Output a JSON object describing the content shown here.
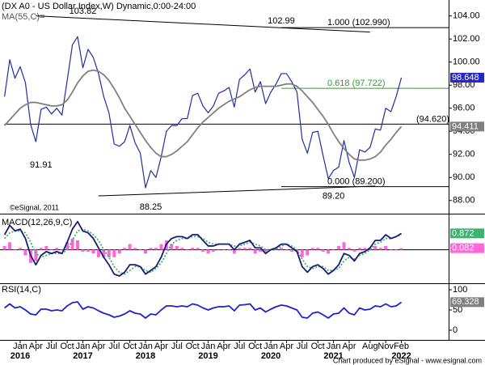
{
  "chart_data": [
    {
      "type": "line",
      "title": "(DX A0 - US Dollar Index,W) Dynamic,0:00-24:00",
      "legend_label": "MA(55,C)=",
      "credit": "©eSignal, 2011",
      "x": [
        "2015-10",
        "2015-11",
        "2015-12",
        "2016-01",
        "2016-02",
        "2016-03",
        "2016-04",
        "2016-05",
        "2016-06",
        "2016-07",
        "2016-08",
        "2016-09",
        "2016-10",
        "2016-11",
        "2016-12",
        "2017-01",
        "2017-02",
        "2017-03",
        "2017-04",
        "2017-05",
        "2017-06",
        "2017-07",
        "2017-08",
        "2017-09",
        "2017-10",
        "2017-11",
        "2017-12",
        "2018-01",
        "2018-02",
        "2018-03",
        "2018-04",
        "2018-05",
        "2018-06",
        "2018-07",
        "2018-08",
        "2018-09",
        "2018-10",
        "2018-11",
        "2018-12",
        "2019-01",
        "2019-02",
        "2019-03",
        "2019-04",
        "2019-05",
        "2019-06",
        "2019-07",
        "2019-08",
        "2019-09",
        "2019-10",
        "2019-11",
        "2019-12",
        "2020-01",
        "2020-02",
        "2020-03",
        "2020-04",
        "2020-05",
        "2020-06",
        "2020-07",
        "2020-08",
        "2020-09",
        "2020-10",
        "2020-11",
        "2020-12",
        "2021-01",
        "2021-02",
        "2021-03",
        "2021-04",
        "2021-05",
        "2021-06",
        "2021-07",
        "2021-08",
        "2021-09",
        "2021-10",
        "2021-11",
        "2021-12",
        "2022-01",
        "2022-02"
      ],
      "series": [
        {
          "name": "US Dollar Index",
          "color": "#1f2f9f",
          "tag_color": "#2525c8",
          "values": [
            97.0,
            100.2,
            98.6,
            99.6,
            98.2,
            94.6,
            93.1,
            95.9,
            96.1,
            95.5,
            96.0,
            95.4,
            98.4,
            101.5,
            102.2,
            99.5,
            101.1,
            100.4,
            99.0,
            97.0,
            95.6,
            92.9,
            92.7,
            93.1,
            94.5,
            93.0,
            92.1,
            89.1,
            90.6,
            90.0,
            91.8,
            94.0,
            94.5,
            94.5,
            95.1,
            95.1,
            97.1,
            97.3,
            96.2,
            95.6,
            96.2,
            97.3,
            97.5,
            97.8,
            96.1,
            98.5,
            98.9,
            99.4,
            97.4,
            98.3,
            96.4,
            97.4,
            98.1,
            99.0,
            99.0,
            98.3,
            97.4,
            93.3,
            92.1,
            93.9,
            94.0,
            91.9,
            89.9,
            90.6,
            90.9,
            93.2,
            91.3,
            90.0,
            92.4,
            92.2,
            92.6,
            94.2,
            94.1,
            96.0,
            95.7,
            97.0,
            98.648
          ]
        },
        {
          "name": "MA(55,C)",
          "color": "#808080",
          "tag_color": "#808080",
          "values": [
            94.5,
            95.0,
            95.5,
            96.0,
            96.3,
            96.5,
            96.5,
            96.4,
            96.3,
            96.2,
            96.2,
            96.3,
            96.7,
            97.4,
            98.2,
            98.8,
            99.2,
            99.3,
            99.2,
            98.9,
            98.4,
            97.7,
            96.9,
            96.0,
            95.3,
            94.6,
            93.9,
            93.2,
            92.6,
            92.1,
            91.8,
            91.8,
            92.0,
            92.3,
            92.7,
            93.1,
            93.7,
            94.3,
            94.8,
            95.2,
            95.6,
            96.0,
            96.3,
            96.6,
            96.8,
            97.0,
            97.3,
            97.6,
            97.8,
            97.9,
            97.9,
            97.9,
            97.9,
            98.0,
            98.1,
            98.1,
            97.9,
            97.5,
            97.0,
            96.5,
            95.9,
            95.3,
            94.6,
            93.8,
            93.1,
            92.5,
            92.0,
            91.6,
            91.5,
            91.5,
            91.6,
            91.8,
            92.2,
            92.8,
            93.3,
            93.9,
            94.411
          ]
        }
      ],
      "ylim": [
        87.0,
        105.1
      ],
      "yticks": [
        {
          "value": 104,
          "label": "104.00"
        },
        {
          "value": 102,
          "label": "102.00"
        },
        {
          "value": 100,
          "label": "100.00"
        },
        {
          "value": 98,
          "label": "98.00"
        },
        {
          "value": 96,
          "label": "96.00"
        },
        {
          "value": 94,
          "label": "94.00"
        },
        {
          "value": 92,
          "label": "92.00"
        },
        {
          "value": 90,
          "label": "90.00"
        },
        {
          "value": 88,
          "label": "88.00"
        }
      ],
      "annotations": [
        {
          "x": "2017-01",
          "value": 103.82,
          "label": "103.82",
          "side": "above"
        },
        {
          "x": "2016-05",
          "value": 91.91,
          "label": "91.91",
          "side": "below"
        },
        {
          "x": "2018-02",
          "value": 88.25,
          "label": "88.25",
          "side": "below"
        },
        {
          "x": "2020-03",
          "value": 102.99,
          "label": "102.99",
          "side": "above"
        },
        {
          "x": "2021-01",
          "value": 89.2,
          "label": "89.20",
          "side": "below"
        }
      ],
      "levels": [
        {
          "from": "2020-03",
          "value": 102.99,
          "label": "1.000 (102.990)",
          "color": "#000000"
        },
        {
          "from": "2020-03",
          "value": 97.722,
          "label": "0.618 (97.722)",
          "color": "#2e9e2e"
        },
        {
          "from": "2015-10",
          "value": 94.62,
          "label": "(94.620)",
          "color": "#000000"
        },
        {
          "from": "2020-03",
          "value": 89.2,
          "label": "0.000 (89.200)",
          "color": "#000000"
        }
      ],
      "trendlines": [
        {
          "x": [
            "2016-04",
            "2021-08"
          ],
          "values": [
            104.0,
            102.6
          ]
        },
        {
          "x": [
            "2017-04",
            "2021-09"
          ],
          "values": [
            88.4,
            89.25
          ]
        }
      ]
    },
    {
      "type": "macd",
      "legend_label": "MACD(12,26,9,C)",
      "series": [
        {
          "name": "Histogram",
          "kind": "bar",
          "color": "#ff66d9",
          "tag_color": "#ff66d9",
          "values": [
            0.2,
            0.4,
            0.0,
            0.1,
            -0.3,
            -0.7,
            -0.6,
            0.1,
            0.2,
            0.0,
            0.1,
            0.0,
            0.4,
            0.6,
            0.5,
            -0.1,
            -0.1,
            -0.2,
            -0.4,
            -0.4,
            -0.4,
            -0.4,
            -0.2,
            0.1,
            0.3,
            0.1,
            0.0,
            -0.2,
            0.1,
            0.1,
            0.3,
            0.5,
            0.3,
            0.2,
            0.1,
            0.0,
            0.1,
            0.1,
            -0.1,
            -0.2,
            -0.1,
            0.0,
            0.0,
            0.0,
            -0.2,
            0.1,
            0.1,
            0.1,
            -0.2,
            -0.1,
            -0.2,
            0.0,
            0.1,
            0.1,
            0.0,
            -0.1,
            -0.1,
            -0.4,
            -0.3,
            0.1,
            0.1,
            -0.1,
            -0.2,
            0.0,
            0.2,
            0.4,
            0.1,
            -0.1,
            0.1,
            0.1,
            0.1,
            0.2,
            0.1,
            0.2,
            0.0,
            0.0,
            0.082
          ]
        },
        {
          "name": "Signal",
          "kind": "line",
          "dash": true,
          "color": "#3cb371",
          "values": [
            0.6,
            0.9,
            1.0,
            1.0,
            0.9,
            0.4,
            -0.2,
            -0.4,
            -0.3,
            -0.2,
            -0.2,
            -0.2,
            0.0,
            0.5,
            1.0,
            1.1,
            1.0,
            0.8,
            0.5,
            0.0,
            -0.4,
            -0.9,
            -1.2,
            -1.3,
            -1.1,
            -0.9,
            -0.9,
            -1.1,
            -1.2,
            -1.0,
            -0.7,
            -0.2,
            0.3,
            0.5,
            0.6,
            0.6,
            0.7,
            0.7,
            0.6,
            0.4,
            0.3,
            0.3,
            0.3,
            0.3,
            0.2,
            0.2,
            0.3,
            0.4,
            0.3,
            0.2,
            0.0,
            0.0,
            0.0,
            0.2,
            0.3,
            0.2,
            0.0,
            -0.5,
            -0.9,
            -1.0,
            -0.9,
            -0.9,
            -1.1,
            -1.1,
            -1.0,
            -0.6,
            -0.4,
            -0.5,
            -0.3,
            -0.2,
            0.0,
            0.3,
            0.4,
            0.6,
            0.6,
            0.7,
            0.79
          ]
        },
        {
          "name": "MACD",
          "kind": "line",
          "color": "#1a1a7a",
          "tag_color": "#3cb371",
          "values": [
            0.8,
            1.3,
            1.0,
            1.1,
            0.6,
            -0.3,
            -0.8,
            -0.3,
            -0.1,
            -0.2,
            -0.1,
            -0.2,
            0.4,
            1.1,
            1.5,
            1.0,
            0.9,
            0.6,
            0.1,
            -0.4,
            -0.8,
            -1.3,
            -1.4,
            -1.2,
            -0.8,
            -0.8,
            -0.9,
            -1.3,
            -1.1,
            -0.9,
            -0.4,
            0.3,
            0.6,
            0.7,
            0.7,
            0.6,
            0.8,
            0.8,
            0.5,
            0.2,
            0.2,
            0.3,
            0.3,
            0.3,
            0.0,
            0.3,
            0.4,
            0.5,
            0.1,
            0.1,
            -0.2,
            0.0,
            0.1,
            0.3,
            0.3,
            0.1,
            -0.1,
            -0.9,
            -1.2,
            -0.9,
            -0.8,
            -1.0,
            -1.3,
            -1.1,
            -0.8,
            -0.2,
            -0.3,
            -0.6,
            -0.2,
            -0.1,
            0.1,
            0.5,
            0.5,
            0.8,
            0.6,
            0.7,
            0.872
          ]
        }
      ],
      "ylim": [
        -1.7,
        1.75
      ],
      "zero_line": 0,
      "yticks": []
    },
    {
      "type": "rsi",
      "legend_label": "RSI(14,C)",
      "series": [
        {
          "name": "RSI",
          "kind": "line",
          "color": "#2222cc",
          "tag_color": "#808080",
          "values": [
            55,
            65,
            55,
            58,
            50,
            40,
            38,
            52,
            52,
            48,
            50,
            48,
            60,
            68,
            70,
            52,
            58,
            55,
            48,
            42,
            38,
            32,
            35,
            40,
            48,
            42,
            40,
            30,
            40,
            38,
            50,
            60,
            60,
            58,
            60,
            58,
            65,
            62,
            55,
            50,
            55,
            58,
            58,
            60,
            48,
            62,
            63,
            65,
            50,
            55,
            45,
            52,
            58,
            62,
            60,
            55,
            50,
            32,
            30,
            42,
            45,
            38,
            30,
            40,
            42,
            55,
            42,
            38,
            55,
            50,
            52,
            60,
            58,
            65,
            58,
            60,
            69.328
          ]
        }
      ],
      "ylim": [
        -20,
        112
      ],
      "yticks": [
        100,
        50,
        0
      ],
      "xticks": [
        {
          "value": "2016-01",
          "label": "Jan"
        },
        {
          "value": "2016-04",
          "label": "Apr"
        },
        {
          "value": "2016-07",
          "label": "Jul"
        },
        {
          "value": "2016-10",
          "label": "Oct"
        },
        {
          "value": "2017-01",
          "label": "Jan"
        },
        {
          "value": "2017-04",
          "label": "Apr"
        },
        {
          "value": "2017-07",
          "label": "Jul"
        },
        {
          "value": "2017-10",
          "label": "Oct"
        },
        {
          "value": "2018-01",
          "label": "Jan"
        },
        {
          "value": "2018-04",
          "label": "Apr"
        },
        {
          "value": "2018-07",
          "label": "Jul"
        },
        {
          "value": "2018-10",
          "label": "Oct"
        },
        {
          "value": "2019-01",
          "label": "Jan"
        },
        {
          "value": "2019-04",
          "label": "Apr"
        },
        {
          "value": "2019-07",
          "label": "Jul"
        },
        {
          "value": "2019-10",
          "label": "Oct"
        },
        {
          "value": "2020-01",
          "label": "Jan"
        },
        {
          "value": "2020-04",
          "label": "Apr"
        },
        {
          "value": "2020-07",
          "label": "Jul"
        },
        {
          "value": "2020-10",
          "label": "Oct"
        },
        {
          "value": "2021-01",
          "label": "Jan"
        },
        {
          "value": "2021-04",
          "label": "Apr"
        },
        {
          "value": "2021-08",
          "label": "Aug"
        },
        {
          "value": "2021-11",
          "label": "Nov"
        },
        {
          "value": "2022-02",
          "label": "Feb"
        }
      ],
      "xyears": [
        {
          "value": "2016-01",
          "label": "2016"
        },
        {
          "value": "2017-01",
          "label": "2017"
        },
        {
          "value": "2018-01",
          "label": "2018"
        },
        {
          "value": "2019-01",
          "label": "2019"
        },
        {
          "value": "2020-01",
          "label": "2020"
        },
        {
          "value": "2021-01",
          "label": "2021"
        },
        {
          "value": "2022-02",
          "label": "2022"
        }
      ]
    }
  ],
  "footer": "Chart produced by eSignal - www.esignal.com"
}
